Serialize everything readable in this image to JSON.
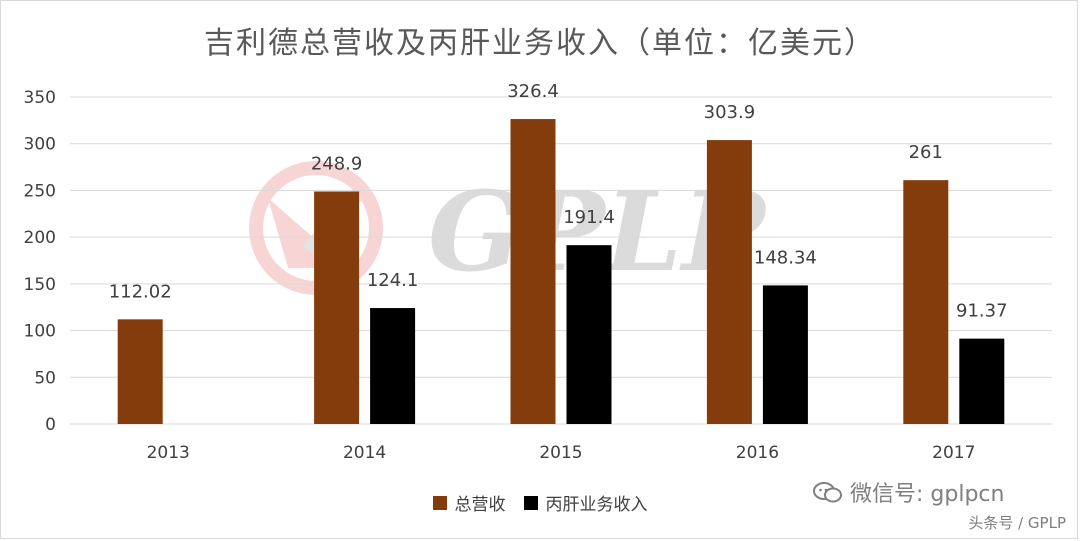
{
  "title": "吉利德总营收及丙肝业务收入（单位：亿美元）",
  "chart_data": {
    "type": "bar",
    "categories": [
      "2013",
      "2014",
      "2015",
      "2016",
      "2017"
    ],
    "series": [
      {
        "name": "总营收",
        "values": [
          112.02,
          248.9,
          326.4,
          303.9,
          261
        ],
        "labels": [
          "112.02",
          "248.9",
          "326.4",
          "303.9",
          "261"
        ],
        "color": "#843c0c"
      },
      {
        "name": "丙肝业务收入",
        "values": [
          null,
          124.1,
          191.4,
          148.34,
          91.37
        ],
        "labels": [
          "",
          "124.1",
          "191.4",
          "148.34",
          "91.37"
        ],
        "color": "#000000"
      }
    ],
    "ylim": [
      0,
      350
    ],
    "yticks": [
      0,
      50,
      100,
      150,
      200,
      250,
      300,
      350
    ],
    "grid": true,
    "legend_position": "bottom"
  },
  "watermark": {
    "center_text": "GPLP",
    "wechat_text": "微信号: gplpcn",
    "toutiao_text": "头条号 / GPLP"
  }
}
